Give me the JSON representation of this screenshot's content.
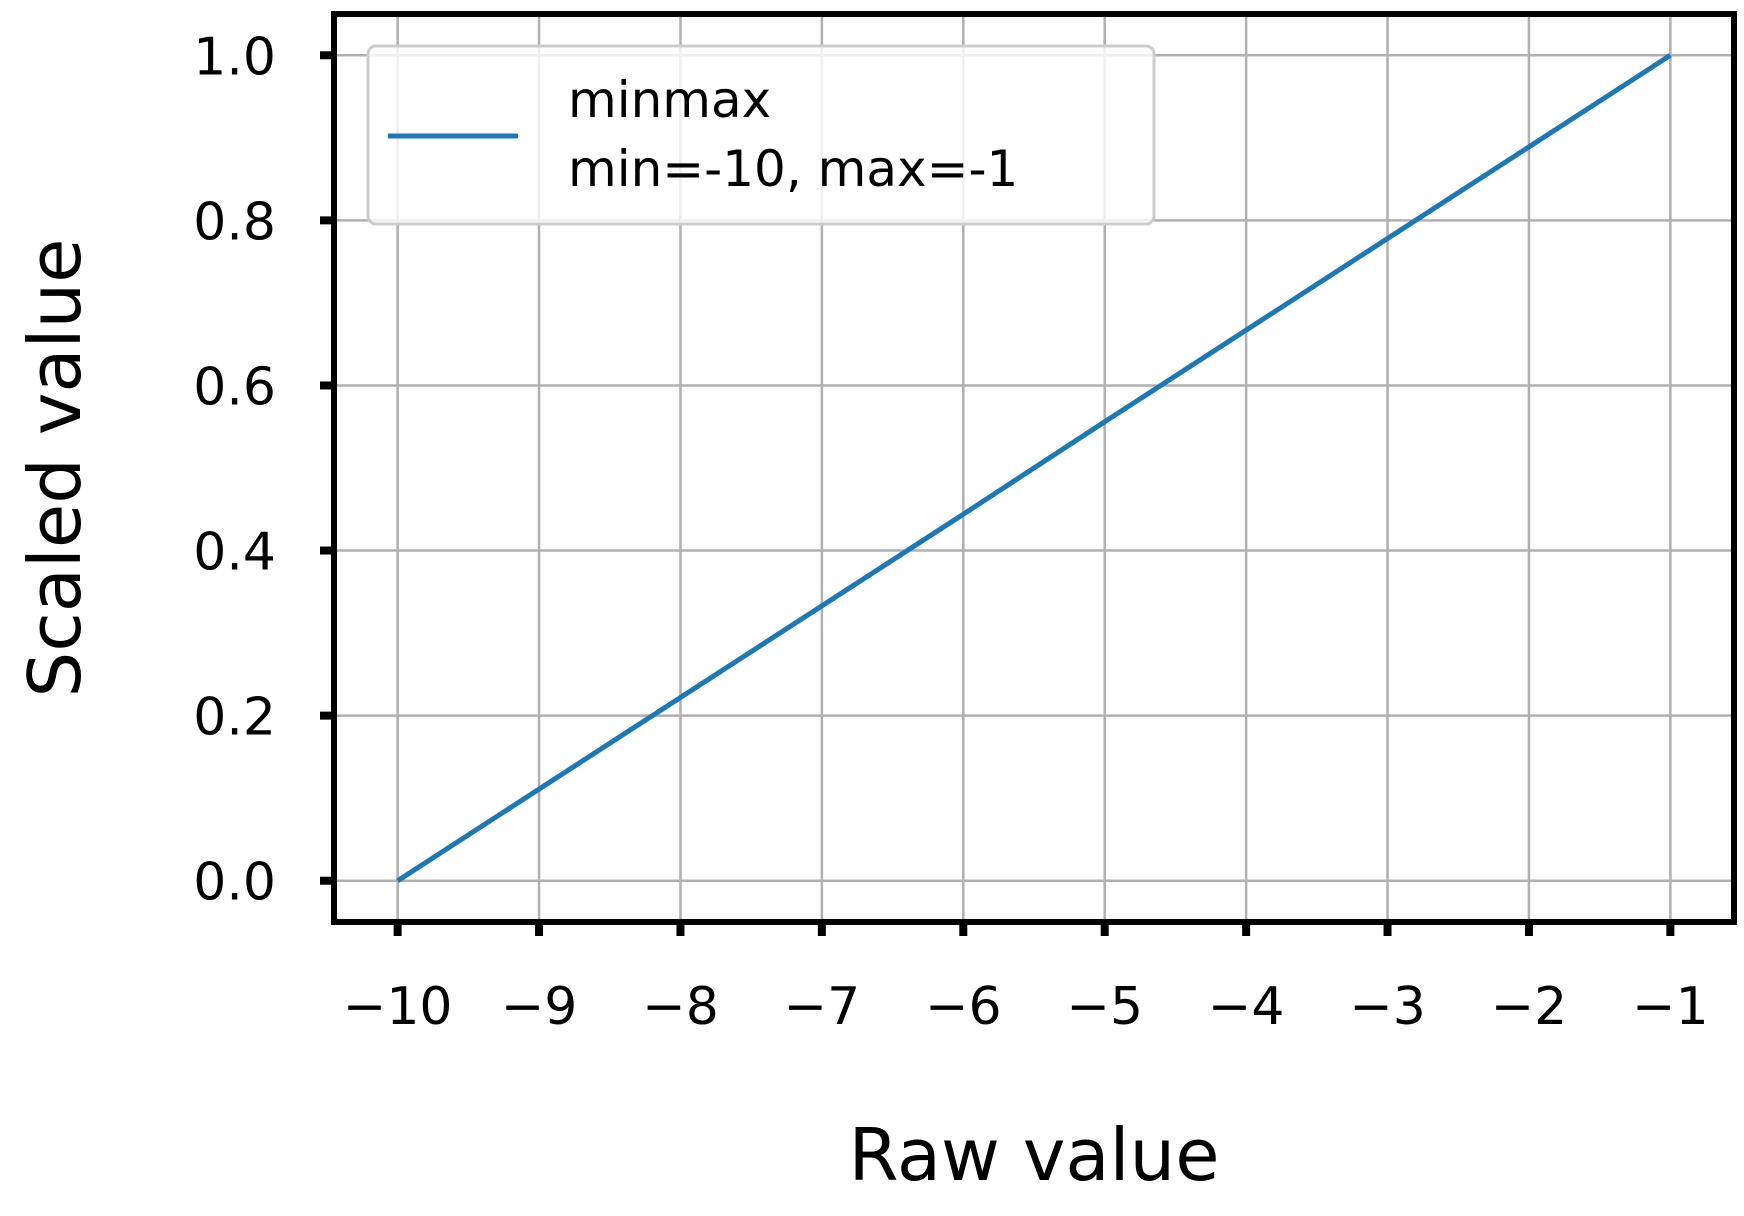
{
  "chart_data": {
    "type": "line",
    "title": "",
    "xlabel": "Raw value",
    "ylabel": "Scaled value",
    "xlim": [
      -10.45,
      -0.55
    ],
    "ylim": [
      -0.05,
      1.05
    ],
    "x_ticks": [
      -10,
      -9,
      -8,
      -7,
      -6,
      -5,
      -4,
      -3,
      -2,
      -1
    ],
    "x_tick_labels": [
      "−10",
      "−9",
      "−8",
      "−7",
      "−6",
      "−5",
      "−4",
      "−3",
      "−2",
      "−1"
    ],
    "y_ticks": [
      0.0,
      0.2,
      0.4,
      0.6,
      0.8,
      1.0
    ],
    "y_tick_labels": [
      "0.0",
      "0.2",
      "0.4",
      "0.6",
      "0.8",
      "1.0"
    ],
    "grid": true,
    "legend_position": "top-left",
    "series": [
      {
        "name_lines": [
          "minmax",
          "min=-10, max=-1"
        ],
        "color": "#1f77b4",
        "x": [
          -10,
          -9,
          -8,
          -7,
          -6,
          -5,
          -4,
          -3,
          -2,
          -1
        ],
        "y": [
          0.0,
          0.111,
          0.222,
          0.333,
          0.444,
          0.556,
          0.667,
          0.778,
          0.889,
          1.0
        ]
      }
    ]
  }
}
